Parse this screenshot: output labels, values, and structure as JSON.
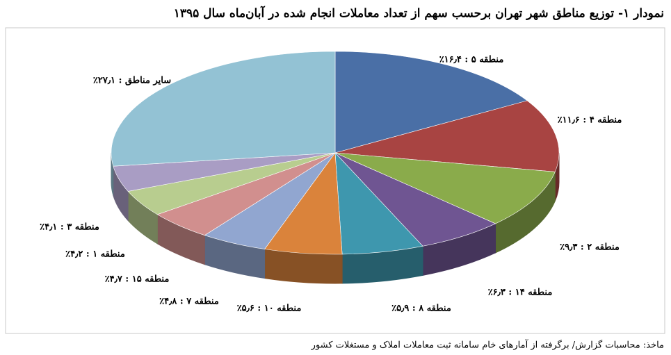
{
  "chart_data": {
    "type": "pie",
    "title": "نمودار ۱- توزیع مناطق شهر تهران برحسب سهم از تعداد معاملات انجام شده در آبان‌ماه سال ۱۳۹۵",
    "values": [
      16.4,
      11.6,
      9.3,
      6.3,
      5.9,
      5.6,
      4.8,
      4.7,
      4.2,
      4.1,
      27.1
    ],
    "value_labels": [
      "منطقه ۵ : ۱۶٫۴٪",
      "منطقه ۴ : ۱۱٫۶٪",
      "منطقه ۲ : ۹٫۳٪",
      "منطقه ۱۴ : ۶٫۳٪",
      "منطقه ۸ : ۵٫۹٪",
      "منطقه ۱۰ : ۵٫۶٪",
      "منطقه ۷ : ۴٫۸٪",
      "منطقه ۱۵ : ۴٫۷٪",
      "منطقه ۱ : ۴٫۲٪",
      "منطقه ۳ : ۴٫۱٪",
      "سایر مناطق : ۲۷٫۱٪"
    ],
    "colors": [
      "#4a6fa6",
      "#a84442",
      "#8aab4b",
      "#6f5592",
      "#3e97ae",
      "#da833b",
      "#91a6d0",
      "#d18f8e",
      "#b8cd8f",
      "#a99dc4",
      "#93c2d4"
    ],
    "source": "ماخذ: محاسبات گزارش/ برگرفته از آمارهای خام سامانه ثبت معاملات املاک و مستغلات کشور"
  }
}
